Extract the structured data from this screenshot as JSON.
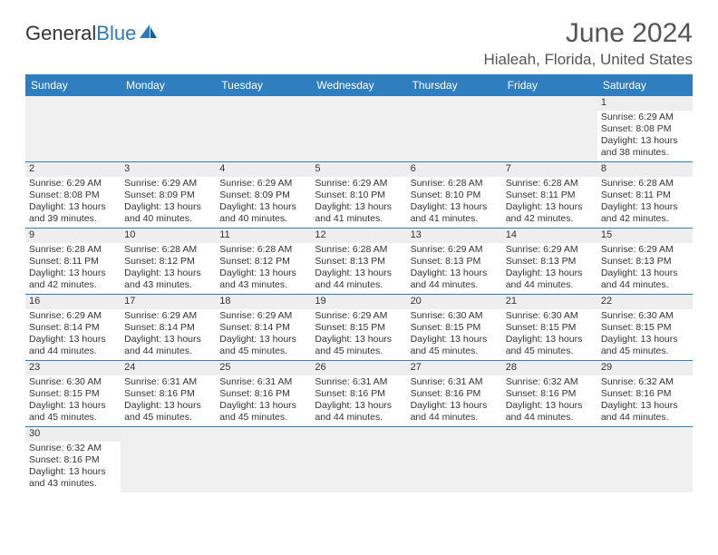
{
  "logo": {
    "text1": "General",
    "text2": "Blue"
  },
  "title": "June 2024",
  "location": "Hialeah, Florida, United States",
  "colors": {
    "header_bg": "#2f7ebf",
    "header_text": "#ffffff",
    "daynum_bg": "#eeeeee",
    "blank_bg": "#f0f0f0",
    "border": "#2f7ebf",
    "text": "#333333",
    "title_text": "#555555"
  },
  "day_names": [
    "Sunday",
    "Monday",
    "Tuesday",
    "Wednesday",
    "Thursday",
    "Friday",
    "Saturday"
  ],
  "weeks": [
    [
      null,
      null,
      null,
      null,
      null,
      null,
      {
        "n": "1",
        "rise": "6:29 AM",
        "set": "8:08 PM",
        "dl": "13 hours and 38 minutes."
      }
    ],
    [
      {
        "n": "2",
        "rise": "6:29 AM",
        "set": "8:08 PM",
        "dl": "13 hours and 39 minutes."
      },
      {
        "n": "3",
        "rise": "6:29 AM",
        "set": "8:09 PM",
        "dl": "13 hours and 40 minutes."
      },
      {
        "n": "4",
        "rise": "6:29 AM",
        "set": "8:09 PM",
        "dl": "13 hours and 40 minutes."
      },
      {
        "n": "5",
        "rise": "6:29 AM",
        "set": "8:10 PM",
        "dl": "13 hours and 41 minutes."
      },
      {
        "n": "6",
        "rise": "6:28 AM",
        "set": "8:10 PM",
        "dl": "13 hours and 41 minutes."
      },
      {
        "n": "7",
        "rise": "6:28 AM",
        "set": "8:11 PM",
        "dl": "13 hours and 42 minutes."
      },
      {
        "n": "8",
        "rise": "6:28 AM",
        "set": "8:11 PM",
        "dl": "13 hours and 42 minutes."
      }
    ],
    [
      {
        "n": "9",
        "rise": "6:28 AM",
        "set": "8:11 PM",
        "dl": "13 hours and 42 minutes."
      },
      {
        "n": "10",
        "rise": "6:28 AM",
        "set": "8:12 PM",
        "dl": "13 hours and 43 minutes."
      },
      {
        "n": "11",
        "rise": "6:28 AM",
        "set": "8:12 PM",
        "dl": "13 hours and 43 minutes."
      },
      {
        "n": "12",
        "rise": "6:28 AM",
        "set": "8:13 PM",
        "dl": "13 hours and 44 minutes."
      },
      {
        "n": "13",
        "rise": "6:29 AM",
        "set": "8:13 PM",
        "dl": "13 hours and 44 minutes."
      },
      {
        "n": "14",
        "rise": "6:29 AM",
        "set": "8:13 PM",
        "dl": "13 hours and 44 minutes."
      },
      {
        "n": "15",
        "rise": "6:29 AM",
        "set": "8:13 PM",
        "dl": "13 hours and 44 minutes."
      }
    ],
    [
      {
        "n": "16",
        "rise": "6:29 AM",
        "set": "8:14 PM",
        "dl": "13 hours and 44 minutes."
      },
      {
        "n": "17",
        "rise": "6:29 AM",
        "set": "8:14 PM",
        "dl": "13 hours and 44 minutes."
      },
      {
        "n": "18",
        "rise": "6:29 AM",
        "set": "8:14 PM",
        "dl": "13 hours and 45 minutes."
      },
      {
        "n": "19",
        "rise": "6:29 AM",
        "set": "8:15 PM",
        "dl": "13 hours and 45 minutes."
      },
      {
        "n": "20",
        "rise": "6:30 AM",
        "set": "8:15 PM",
        "dl": "13 hours and 45 minutes."
      },
      {
        "n": "21",
        "rise": "6:30 AM",
        "set": "8:15 PM",
        "dl": "13 hours and 45 minutes."
      },
      {
        "n": "22",
        "rise": "6:30 AM",
        "set": "8:15 PM",
        "dl": "13 hours and 45 minutes."
      }
    ],
    [
      {
        "n": "23",
        "rise": "6:30 AM",
        "set": "8:15 PM",
        "dl": "13 hours and 45 minutes."
      },
      {
        "n": "24",
        "rise": "6:31 AM",
        "set": "8:16 PM",
        "dl": "13 hours and 45 minutes."
      },
      {
        "n": "25",
        "rise": "6:31 AM",
        "set": "8:16 PM",
        "dl": "13 hours and 45 minutes."
      },
      {
        "n": "26",
        "rise": "6:31 AM",
        "set": "8:16 PM",
        "dl": "13 hours and 44 minutes."
      },
      {
        "n": "27",
        "rise": "6:31 AM",
        "set": "8:16 PM",
        "dl": "13 hours and 44 minutes."
      },
      {
        "n": "28",
        "rise": "6:32 AM",
        "set": "8:16 PM",
        "dl": "13 hours and 44 minutes."
      },
      {
        "n": "29",
        "rise": "6:32 AM",
        "set": "8:16 PM",
        "dl": "13 hours and 44 minutes."
      }
    ],
    [
      {
        "n": "30",
        "rise": "6:32 AM",
        "set": "8:16 PM",
        "dl": "13 hours and 43 minutes."
      },
      null,
      null,
      null,
      null,
      null,
      null
    ]
  ],
  "labels": {
    "sunrise": "Sunrise:",
    "sunset": "Sunset:",
    "daylight": "Daylight:"
  }
}
